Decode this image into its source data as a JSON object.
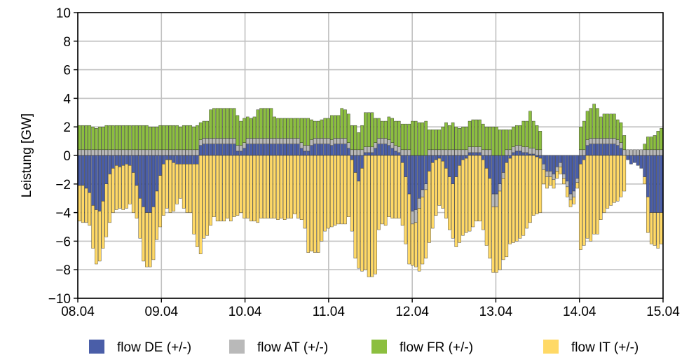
{
  "chart_data": {
    "type": "bar",
    "stacked": true,
    "ylabel": "Leistung [GW]",
    "xlabel": "",
    "ylim": [
      -10,
      10
    ],
    "yticks": [
      -10,
      -8,
      -6,
      -4,
      -2,
      0,
      2,
      4,
      6,
      8,
      10
    ],
    "xlim": [
      0,
      7
    ],
    "xticks": [
      {
        "value": 0,
        "label": "08.04"
      },
      {
        "value": 1,
        "label": "09.04"
      },
      {
        "value": 2,
        "label": "10.04"
      },
      {
        "value": 3,
        "label": "11.04"
      },
      {
        "value": 4,
        "label": "12.04"
      },
      {
        "value": 5,
        "label": "13.04"
      },
      {
        "value": 6,
        "label": "14.04"
      },
      {
        "value": 7,
        "label": "15.04"
      }
    ],
    "grid": true,
    "legend_position": "bottom",
    "resolution": "hourly",
    "series": [
      {
        "name": "flow DE (+/-)",
        "color": "#4a5ea8",
        "values": [
          -2.1,
          -2.1,
          -2.3,
          -2.6,
          -3.5,
          -3.8,
          -3.9,
          -3.2,
          -2.0,
          -1.3,
          -0.9,
          -0.7,
          -0.8,
          -0.7,
          -0.6,
          -0.7,
          -1.2,
          -2.1,
          -3.0,
          -3.6,
          -4.0,
          -4.0,
          -3.6,
          -2.5,
          -1.4,
          -0.6,
          -0.3,
          -0.3,
          -0.5,
          -0.6,
          -0.6,
          -0.6,
          -0.6,
          -0.6,
          -0.6,
          -0.6,
          0.7,
          0.8,
          0.8,
          0.8,
          0.8,
          0.8,
          0.8,
          0.8,
          0.8,
          0.8,
          0.8,
          0.3,
          0.3,
          0.5,
          0.8,
          0.8,
          0.8,
          0.8,
          0.8,
          0.8,
          0.8,
          0.8,
          0.8,
          0.8,
          0.8,
          0.8,
          0.8,
          0.8,
          0.8,
          0.8,
          0.5,
          0.3,
          0.3,
          0.7,
          0.8,
          0.8,
          0.8,
          0.8,
          0.8,
          0.7,
          0.8,
          0.8,
          0.8,
          0.8,
          0.5,
          -0.3,
          -1.2,
          -1.8,
          -0.9,
          0.2,
          0.2,
          0.2,
          0.5,
          0.8,
          0.8,
          0.8,
          0.7,
          0.5,
          0.3,
          0.2,
          -0.5,
          -1.5,
          -2.7,
          -3.9,
          -3.8,
          -3.0,
          -2.4,
          -2.0,
          -1.1,
          -0.5,
          -0.3,
          -0.2,
          -0.4,
          -0.9,
          -1.5,
          -2.0,
          -1.5,
          -0.7,
          -0.3,
          -0.2,
          0.2,
          0.2,
          0.2,
          0.2,
          -0.3,
          -0.9,
          -1.6,
          -2.7,
          -2.7,
          -2.0,
          -1.2,
          -0.5,
          -0.2,
          0.2,
          0.3,
          0.3,
          0.2,
          0.2,
          0.1,
          0.1,
          -0.1,
          -0.2,
          -0.6,
          -1.1,
          -1.1,
          -1.3,
          -0.8,
          -0.5,
          -1.3,
          -1.8,
          -2.7,
          -2.5,
          -1.6,
          -0.6,
          -0.3,
          0.7,
          0.8,
          0.8,
          0.8,
          0.8,
          0.8,
          0.8,
          0.8,
          0.8,
          0.7,
          0.5,
          0.0,
          -0.3,
          -0.6,
          -0.5,
          -0.7,
          -0.9,
          -1.5,
          -2.9,
          -4.0,
          -4.0,
          -4.0,
          -4.0
        ]
      },
      {
        "name": "flow AT (+/-)",
        "color": "#b9b9b9",
        "values": [
          0.4,
          0.4,
          0.4,
          0.4,
          0.4,
          0.4,
          0.4,
          0.4,
          0.4,
          0.4,
          0.4,
          0.4,
          0.4,
          0.4,
          0.4,
          0.4,
          0.4,
          0.4,
          0.4,
          0.4,
          0.4,
          0.4,
          0.4,
          0.4,
          0.4,
          0.4,
          0.4,
          0.4,
          0.4,
          0.4,
          0.4,
          0.4,
          0.4,
          0.4,
          0.4,
          0.4,
          0.4,
          0.4,
          0.4,
          0.4,
          0.4,
          0.4,
          0.4,
          0.4,
          0.4,
          0.4,
          0.4,
          0.4,
          0.4,
          0.4,
          0.4,
          0.4,
          0.4,
          0.4,
          0.4,
          0.4,
          0.4,
          0.4,
          0.4,
          0.4,
          0.4,
          0.4,
          0.4,
          0.4,
          0.4,
          0.4,
          0.4,
          0.4,
          0.4,
          0.4,
          0.4,
          0.4,
          0.4,
          0.4,
          0.4,
          0.4,
          0.4,
          0.4,
          0.4,
          0.4,
          0.4,
          0.4,
          0.4,
          0.4,
          0.4,
          0.4,
          0.4,
          0.4,
          0.4,
          0.4,
          0.4,
          0.4,
          0.4,
          0.4,
          0.4,
          0.4,
          0.4,
          0.4,
          0.4,
          -0.9,
          -0.9,
          -0.7,
          -0.5,
          -0.4,
          0.4,
          0.4,
          0.4,
          0.4,
          0.4,
          0.4,
          0.4,
          0.4,
          0.4,
          0.4,
          0.4,
          0.4,
          0.4,
          0.4,
          0.4,
          0.4,
          0.4,
          0.4,
          0.4,
          -0.9,
          -0.9,
          -0.5,
          -0.4,
          0.4,
          0.4,
          0.4,
          0.4,
          0.4,
          0.4,
          0.4,
          0.4,
          0.4,
          0.4,
          0.4,
          -0.4,
          -0.4,
          -0.4,
          -0.4,
          -0.3,
          -0.3,
          -0.3,
          -0.4,
          -0.4,
          -0.4,
          -0.3,
          0.4,
          0.4,
          0.4,
          0.4,
          0.4,
          0.4,
          0.4,
          0.4,
          0.4,
          0.4,
          0.4,
          0.4,
          0.4,
          0.4,
          0.4,
          0.4,
          0.4,
          0.4,
          0.4,
          0.4,
          0.4,
          0.4,
          0.4,
          0.4,
          0.4
        ]
      },
      {
        "name": "flow FR (+/-)",
        "color": "#8cbf3f",
        "values": [
          1.7,
          1.7,
          1.7,
          1.7,
          1.6,
          1.5,
          1.6,
          1.6,
          1.7,
          1.7,
          1.7,
          1.7,
          1.7,
          1.7,
          1.7,
          1.7,
          1.7,
          1.7,
          1.7,
          1.7,
          1.7,
          1.6,
          1.6,
          1.6,
          1.7,
          1.7,
          1.7,
          1.7,
          1.7,
          1.7,
          1.6,
          1.7,
          1.7,
          1.7,
          1.6,
          1.7,
          1.2,
          1.2,
          1.2,
          2.0,
          2.1,
          2.1,
          2.1,
          2.1,
          2.1,
          2.1,
          2.1,
          2.1,
          1.7,
          1.7,
          1.5,
          1.4,
          1.5,
          2.0,
          2.1,
          2.1,
          2.1,
          2.1,
          1.5,
          1.4,
          1.4,
          1.4,
          1.4,
          1.4,
          1.4,
          1.4,
          1.7,
          1.9,
          1.9,
          1.4,
          1.2,
          1.2,
          1.3,
          1.4,
          1.4,
          1.7,
          1.6,
          1.6,
          2.1,
          2.0,
          2.0,
          1.7,
          1.7,
          1.2,
          1.7,
          2.4,
          2.4,
          2.4,
          1.7,
          1.4,
          1.2,
          1.2,
          1.6,
          1.7,
          1.7,
          1.8,
          1.8,
          1.8,
          1.8,
          2.4,
          2.4,
          2.3,
          2.3,
          2.4,
          1.4,
          1.4,
          1.4,
          1.4,
          1.6,
          1.9,
          1.7,
          1.9,
          1.6,
          1.5,
          1.6,
          1.6,
          1.8,
          1.9,
          1.9,
          1.9,
          1.8,
          1.6,
          1.6,
          2.0,
          2.0,
          1.8,
          1.8,
          1.4,
          1.4,
          1.4,
          1.4,
          1.4,
          1.8,
          1.8,
          2.6,
          1.9,
          1.7,
          1.3,
          0.0,
          0.0,
          0.0,
          0.0,
          0.0,
          0.0,
          0.0,
          0.0,
          0.0,
          0.0,
          0.0,
          1.6,
          2.0,
          2.0,
          2.1,
          2.4,
          2.1,
          1.5,
          1.7,
          1.7,
          1.7,
          1.7,
          1.4,
          1.4,
          1.0,
          0.0,
          0.0,
          0.0,
          0.0,
          0.0,
          0.4,
          0.9,
          0.9,
          1.0,
          1.3,
          1.5
        ]
      },
      {
        "name": "flow IT (+/-)",
        "color": "#ffd966",
        "values": [
          -2.5,
          -2.6,
          -2.4,
          -2.3,
          -3.0,
          -3.8,
          -3.5,
          -3.3,
          -3.7,
          -3.4,
          -3.1,
          -3.1,
          -2.9,
          -3.1,
          -3.1,
          -2.7,
          -2.8,
          -2.3,
          -2.8,
          -3.8,
          -3.8,
          -3.8,
          -3.7,
          -3.4,
          -3.6,
          -3.6,
          -3.4,
          -3.7,
          -3.4,
          -2.8,
          -2.4,
          -3.1,
          -3.4,
          -3.4,
          -4.9,
          -5.8,
          -6.9,
          -5.8,
          -5.6,
          -4.9,
          -4.3,
          -4.6,
          -4.6,
          -4.6,
          -4.4,
          -4.6,
          -4.3,
          -4.2,
          -4.0,
          -4.4,
          -4.4,
          -4.6,
          -4.6,
          -4.7,
          -4.4,
          -4.4,
          -4.4,
          -4.4,
          -4.4,
          -4.5,
          -4.4,
          -4.5,
          -4.4,
          -4.4,
          -4.1,
          -4.4,
          -4.5,
          -5.1,
          -6.8,
          -6.7,
          -6.8,
          -6.8,
          -6.0,
          -5.3,
          -5.1,
          -5.0,
          -4.9,
          -4.8,
          -4.8,
          -4.8,
          -4.3,
          -5.0,
          -6.0,
          -6.1,
          -7.2,
          -8.0,
          -8.5,
          -8.5,
          -8.3,
          -5.2,
          -4.8,
          -4.9,
          -4.3,
          -4.4,
          -4.4,
          -4.4,
          -4.4,
          -4.7,
          -4.9,
          -2.9,
          -3.1,
          -4.4,
          -4.7,
          -4.8,
          -5.0,
          -4.6,
          -3.9,
          -3.3,
          -3.3,
          -3.5,
          -3.7,
          -3.8,
          -4.9,
          -5.4,
          -5.3,
          -5.2,
          -5.3,
          -5.0,
          -4.6,
          -4.6,
          -4.9,
          -5.4,
          -5.6,
          -4.6,
          -4.6,
          -5.5,
          -5.7,
          -6.6,
          -6.0,
          -6.1,
          -6.0,
          -5.8,
          -5.6,
          -5.1,
          -4.7,
          -4.2,
          -4.0,
          -3.8,
          -1.0,
          -0.8,
          -0.6,
          -0.6,
          -0.5,
          -0.5,
          -0.4,
          -0.7,
          -0.5,
          -0.5,
          -0.4,
          -6.0,
          -6.0,
          -5.8,
          -6.0,
          -5.5,
          -5.5,
          -4.5,
          -4.0,
          -3.7,
          -3.5,
          -3.3,
          -3.2,
          -2.9,
          -2.5,
          0.0,
          0.0,
          0.0,
          0.0,
          0.0,
          -0.5,
          -2.5,
          -2.2,
          -2.3,
          -2.5,
          -2.2
        ]
      }
    ]
  },
  "legend": [
    {
      "key": "de",
      "label": "flow DE (+/-)",
      "color": "#4a5ea8"
    },
    {
      "key": "at",
      "label": "flow AT (+/-)",
      "color": "#b9b9b9"
    },
    {
      "key": "fr",
      "label": "flow FR (+/-)",
      "color": "#8cbf3f"
    },
    {
      "key": "it",
      "label": "flow IT (+/-)",
      "color": "#ffd966"
    }
  ]
}
